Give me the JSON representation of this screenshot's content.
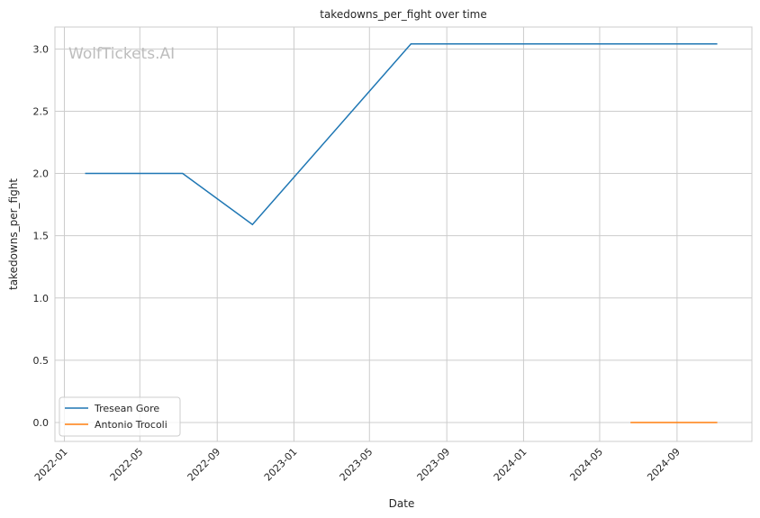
{
  "chart_data": {
    "type": "line",
    "title": "takedowns_per_fight over time",
    "xlabel": "Date",
    "ylabel": "takedowns_per_fight",
    "watermark": "WolfTickets.AI",
    "x_axis_type": "date",
    "xlim": [
      "2021-12-17",
      "2024-12-29"
    ],
    "ylim": [
      -0.152,
      3.176
    ],
    "x_ticks": [
      "2022-01",
      "2022-05",
      "2022-09",
      "2023-01",
      "2023-05",
      "2023-09",
      "2024-01",
      "2024-05",
      "2024-09"
    ],
    "y_ticks": [
      "0.0",
      "0.5",
      "1.0",
      "1.5",
      "2.0",
      "2.5",
      "3.0"
    ],
    "grid": true,
    "legend_position": "lower-left",
    "series": [
      {
        "name": "Tresean Gore",
        "color": "#1f77b4",
        "x": [
          "2022-02-03",
          "2022-07-08",
          "2022-10-27",
          "2023-07-06",
          "2024-11-04"
        ],
        "y": [
          2.0,
          2.0,
          1.59,
          3.04,
          3.04
        ]
      },
      {
        "name": "Antonio Trocoli",
        "color": "#ff7f0e",
        "x": [
          "2024-06-19",
          "2024-11-04"
        ],
        "y": [
          0.0,
          0.0
        ]
      }
    ]
  }
}
